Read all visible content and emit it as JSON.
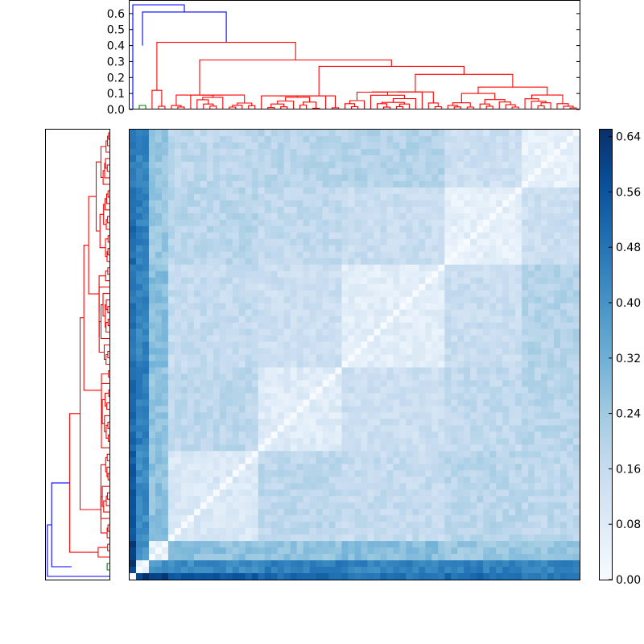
{
  "chart_data": {
    "type": "heatmap",
    "title": "",
    "description_visible_text": "",
    "n": 70,
    "colormap": "Blues",
    "value_range": [
      0.0,
      0.65
    ],
    "top_dendrogram": {
      "orientation": "top",
      "ylim": [
        0.0,
        0.68
      ],
      "yticks": [
        "0.0",
        "0.1",
        "0.2",
        "0.3",
        "0.4",
        "0.5",
        "0.6"
      ],
      "link_colors": {
        "outer": "#0000ff",
        "small_cluster": "#008000",
        "main_cluster": "#ff0000"
      },
      "major_merges": [
        {
          "height": 0.65,
          "color": "#0000ff"
        },
        {
          "height": 0.61,
          "color": "#0000ff"
        },
        {
          "height": 0.42,
          "color": "#ff0000"
        },
        {
          "height": 0.4,
          "color": "#008000"
        },
        {
          "height": 0.31,
          "color": "#ff0000"
        },
        {
          "height": 0.27,
          "color": "#ff0000"
        },
        {
          "height": 0.22,
          "color": "#ff0000"
        }
      ]
    },
    "left_dendrogram": {
      "orientation": "left",
      "mirrors": "top_dendrogram"
    },
    "colorbar": {
      "ticks": [
        "0.00",
        "0.08",
        "0.16",
        "0.24",
        "0.32",
        "0.40",
        "0.48",
        "0.56",
        "0.64"
      ],
      "range": [
        0.0,
        0.65
      ]
    }
  }
}
